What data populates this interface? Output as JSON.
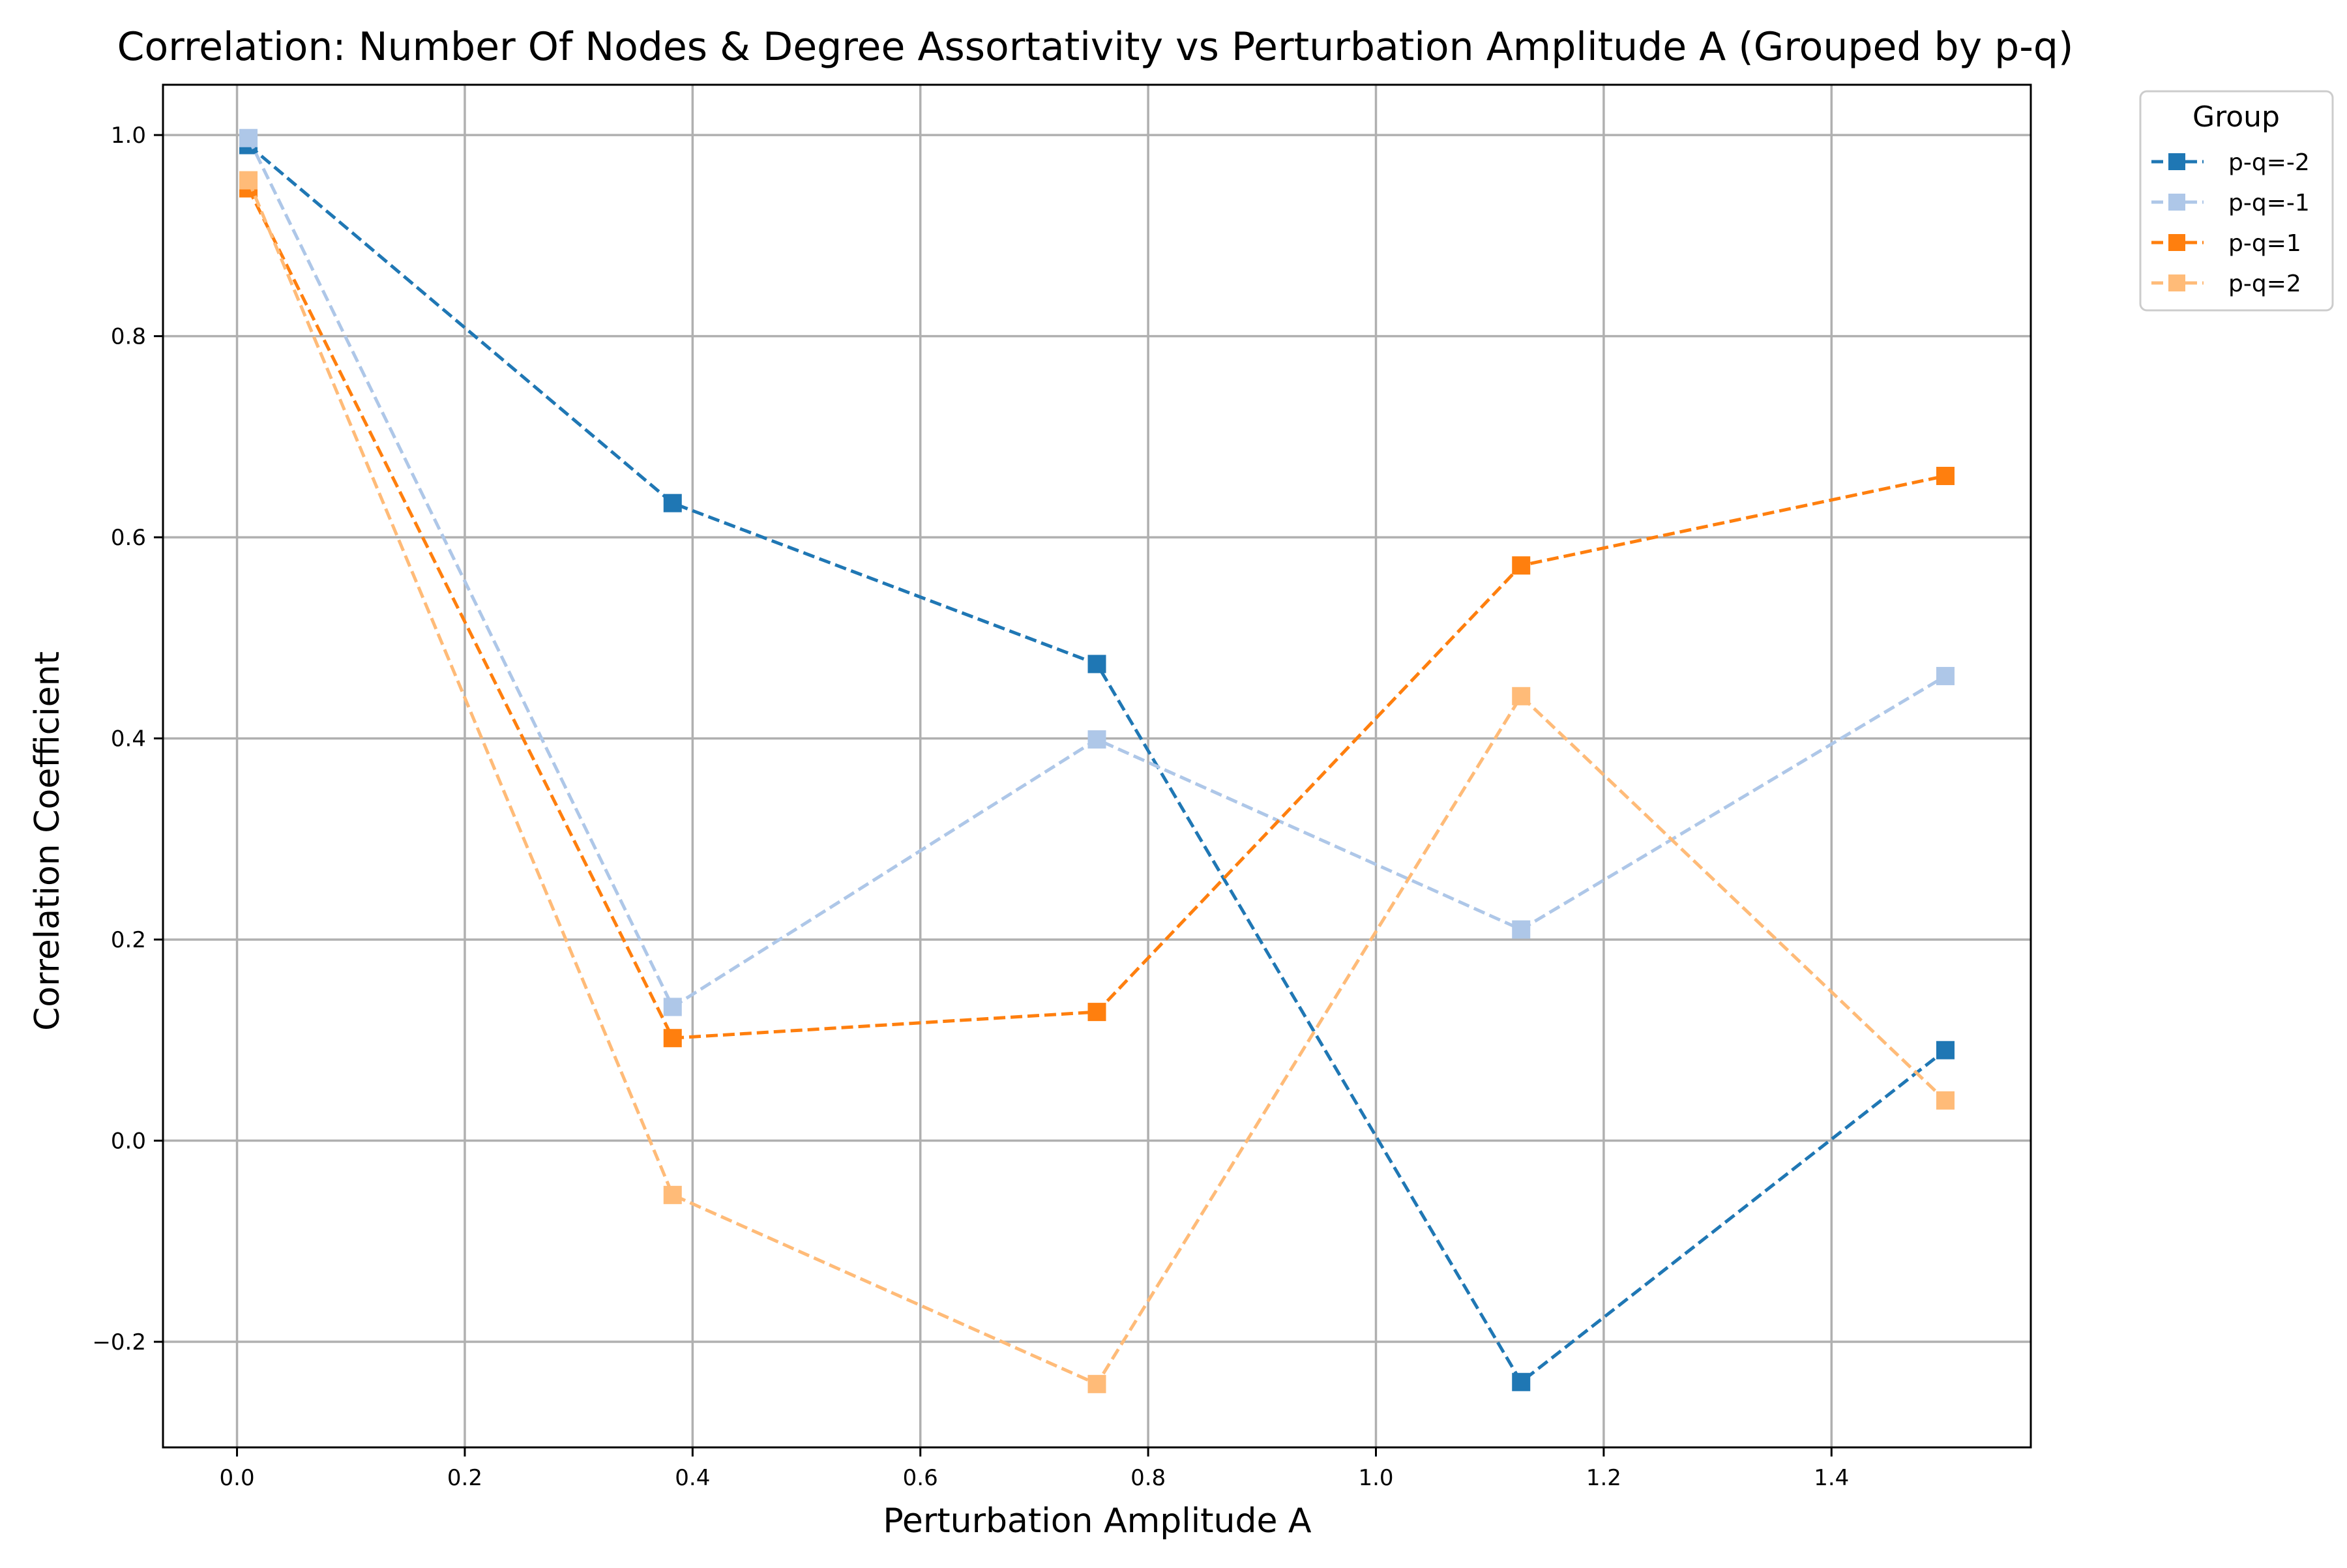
{
  "chart_data": {
    "type": "line",
    "title": "Correlation: Number Of Nodes & Degree Assortativity vs Perturbation Amplitude A (Grouped by p-q)",
    "xlabel": "Perturbation Amplitude A",
    "ylabel": "Correlation Coefficient",
    "xlim": [
      -0.065,
      1.575
    ],
    "ylim": [
      -0.305,
      1.05
    ],
    "x_ticks": [
      0.0,
      0.2,
      0.4,
      0.6,
      0.8,
      1.0,
      1.2,
      1.4
    ],
    "x_tick_labels": [
      "0.0",
      "0.2",
      "0.4",
      "0.6",
      "0.8",
      "1.0",
      "1.2",
      "1.4"
    ],
    "y_ticks": [
      -0.2,
      0.0,
      0.2,
      0.4,
      0.6,
      0.8,
      1.0
    ],
    "y_tick_labels": [
      "−0.2",
      "0.0",
      "0.2",
      "0.4",
      "0.6",
      "0.8",
      "1.0"
    ],
    "grid": true,
    "legend": {
      "title": "Group",
      "placement": "outside-top-right"
    },
    "x": [
      0.01,
      0.3825,
      0.755,
      1.1275,
      1.5
    ],
    "series": [
      {
        "name": "p-q=-2",
        "color": "#1f77b4",
        "values": [
          0.99,
          0.634,
          0.474,
          -0.24,
          0.09
        ]
      },
      {
        "name": "p-q=-1",
        "color": "#aec7e8",
        "values": [
          0.997,
          0.133,
          0.399,
          0.21,
          0.462
        ]
      },
      {
        "name": "p-q=1",
        "color": "#ff7f0e",
        "values": [
          0.947,
          0.102,
          0.128,
          0.572,
          0.661
        ]
      },
      {
        "name": "p-q=2",
        "color": "#ffbb78",
        "values": [
          0.955,
          -0.054,
          -0.242,
          0.442,
          0.04
        ]
      }
    ],
    "marker": "square",
    "line_style": "dashed"
  }
}
